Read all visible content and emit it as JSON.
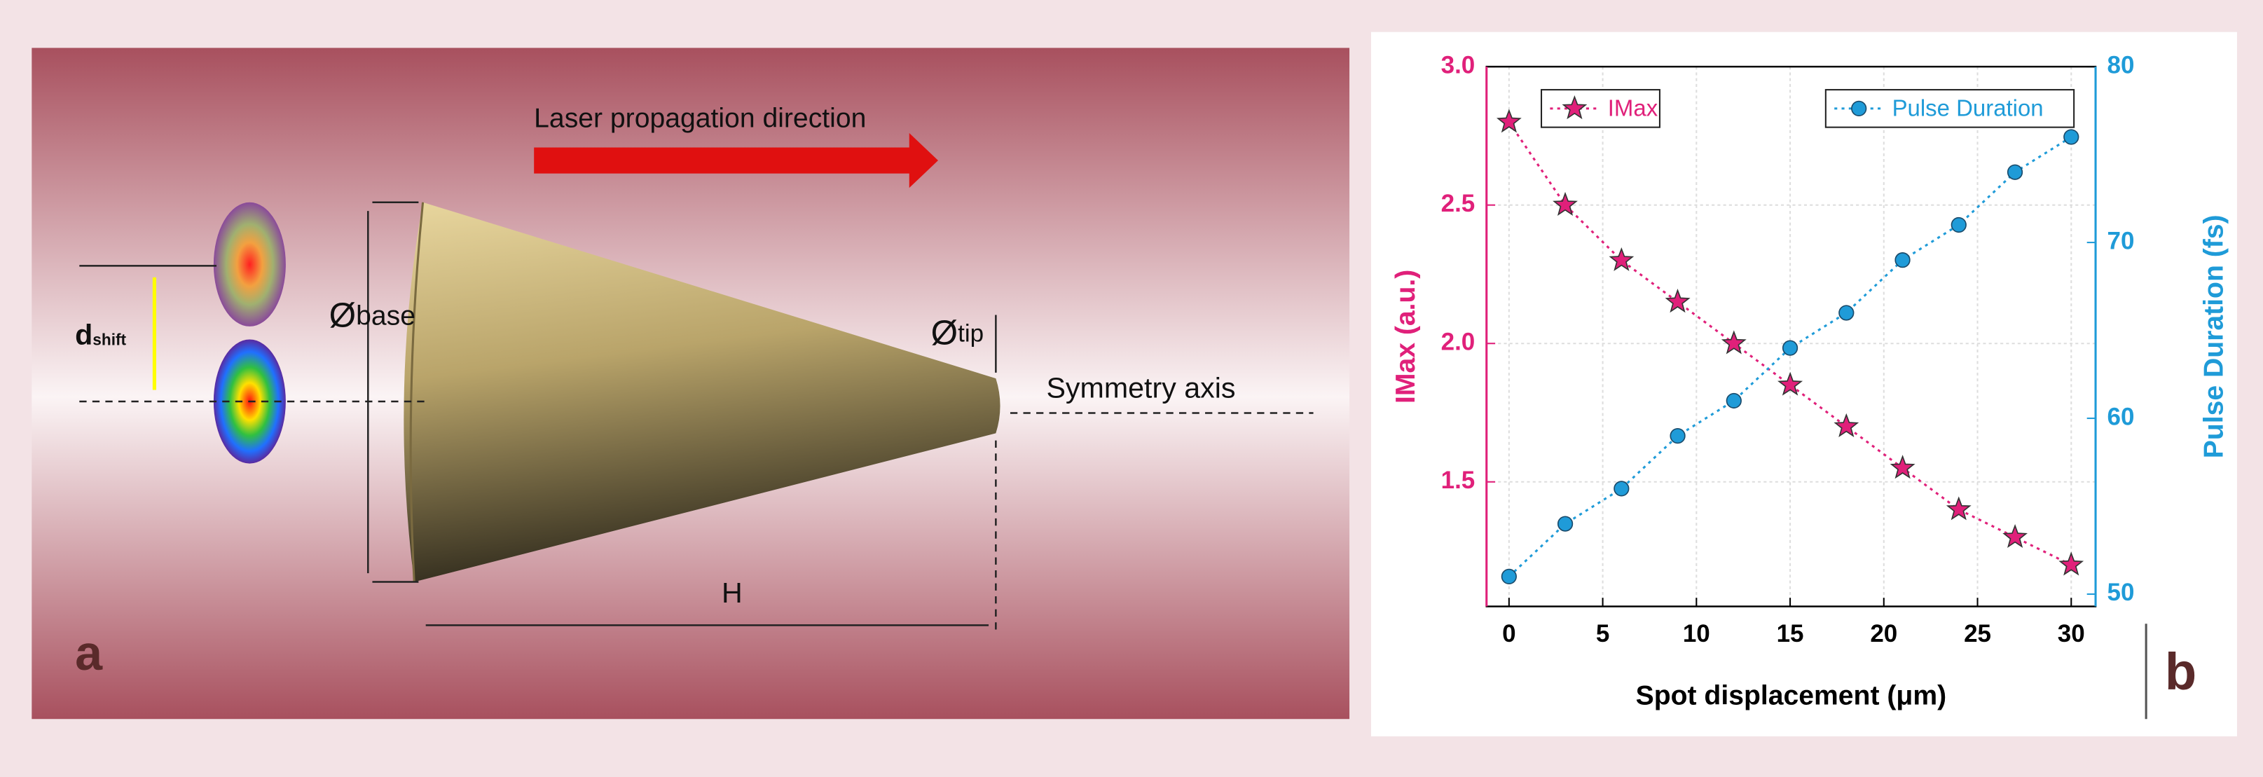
{
  "diagram": {
    "direction_label": "Laser propagation direction",
    "base_symbol": "Ø",
    "base_sub": "base",
    "tip_symbol": "Ø",
    "tip_sub": "tip",
    "shift_main": "d",
    "shift_sub": "shift",
    "axis_label": "Symmetry axis",
    "height_label": "H",
    "panel_label": "a"
  },
  "panel_b_label": "b",
  "chart_data": {
    "type": "line",
    "xlabel": "Spot displacement (μm)",
    "ylabel": "IMax (a.u.)",
    "y2label": "Pulse Duration (fs)",
    "x": [
      0,
      3,
      6,
      9,
      12,
      15,
      18,
      21,
      24,
      27,
      30
    ],
    "series": [
      {
        "name": "IMax",
        "color": "#e0207a",
        "marker": "star",
        "values": [
          2.8,
          2.5,
          2.3,
          2.15,
          2.0,
          1.85,
          1.7,
          1.55,
          1.4,
          1.3,
          1.2
        ]
      },
      {
        "name": "Pulse Duration",
        "color": "#1f9bd8",
        "marker": "circle",
        "axis": "y2",
        "values": [
          51,
          54,
          56,
          59,
          61,
          64,
          66,
          69,
          71,
          74,
          76
        ]
      }
    ],
    "xlim": [
      -1.2,
      31.3
    ],
    "xticks": [
      0,
      5,
      10,
      15,
      20,
      25,
      30
    ],
    "ylim": [
      1.05,
      3.0
    ],
    "yticks": [
      {
        "value": 1.5,
        "label": "1.5"
      },
      {
        "value": 2,
        "label": "2.0"
      },
      {
        "value": 2.5,
        "label": "2.5"
      },
      {
        "value": 3,
        "label": "3.0"
      }
    ],
    "y2lim": [
      49.3,
      80
    ],
    "y2ticks": [
      50,
      60,
      70,
      80
    ],
    "grid": true
  }
}
